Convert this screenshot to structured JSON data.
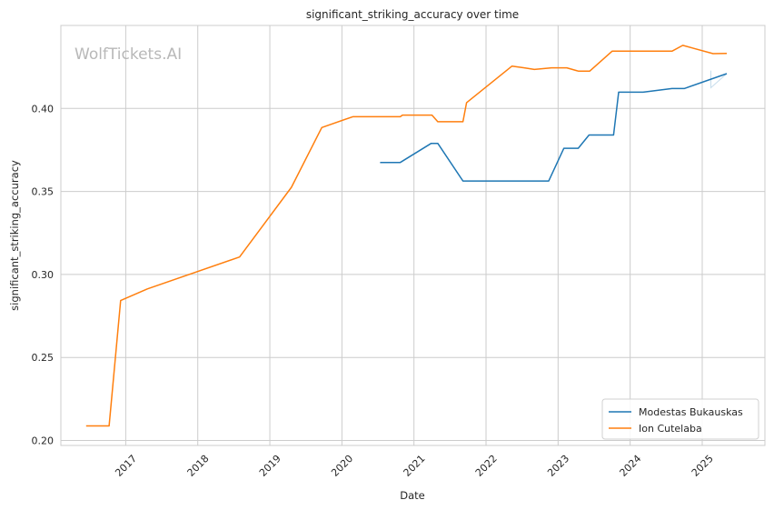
{
  "chart_data": {
    "type": "line",
    "title": "significant_striking_accuracy over time",
    "xlabel": "Date",
    "ylabel": "significant_striking_accuracy",
    "watermark": "WolfTickets.AI",
    "xlim": [
      2016.1,
      2025.87
    ],
    "ylim": [
      0.197,
      0.45
    ],
    "x_ticks": [
      2017,
      2018,
      2019,
      2020,
      2021,
      2022,
      2023,
      2024,
      2025
    ],
    "x_tick_labels": [
      "2017",
      "2018",
      "2019",
      "2020",
      "2021",
      "2022",
      "2023",
      "2024",
      "2025"
    ],
    "y_ticks": [
      0.2,
      0.25,
      0.3,
      0.35,
      0.4
    ],
    "y_tick_labels": [
      "0.20",
      "0.25",
      "0.30",
      "0.35",
      "0.40"
    ],
    "grid": true,
    "legend_position": "lower-right",
    "series": [
      {
        "name": "Modestas Bukauskas",
        "color": "#1f77b4",
        "points": [
          [
            2020.53,
            0.3675
          ],
          [
            2020.81,
            0.3675
          ],
          [
            2021.24,
            0.379
          ],
          [
            2021.33,
            0.379
          ],
          [
            2021.68,
            0.3563
          ],
          [
            2022.87,
            0.3563
          ],
          [
            2023.08,
            0.376
          ],
          [
            2023.28,
            0.376
          ],
          [
            2023.43,
            0.384
          ],
          [
            2023.77,
            0.384
          ],
          [
            2023.84,
            0.4098
          ],
          [
            2024.18,
            0.4098
          ],
          [
            2024.58,
            0.412
          ],
          [
            2024.75,
            0.412
          ],
          [
            2025.34,
            0.421
          ]
        ],
        "band": [
          [
            2025.12,
            0.4228,
            0.4228
          ],
          [
            2025.12,
            0.4125,
            0.4125
          ],
          [
            2025.34,
            0.421,
            0.421
          ]
        ]
      },
      {
        "name": "Ion Cutelaba",
        "color": "#ff7f0e",
        "points": [
          [
            2016.45,
            0.2088
          ],
          [
            2016.77,
            0.2088
          ],
          [
            2016.93,
            0.2843
          ],
          [
            2017.3,
            0.2913
          ],
          [
            2018.58,
            0.3105
          ],
          [
            2019.3,
            0.3525
          ],
          [
            2019.72,
            0.3885
          ],
          [
            2020.15,
            0.395
          ],
          [
            2020.81,
            0.395
          ],
          [
            2020.84,
            0.396
          ],
          [
            2021.25,
            0.396
          ],
          [
            2021.33,
            0.392
          ],
          [
            2021.68,
            0.392
          ],
          [
            2021.73,
            0.4035
          ],
          [
            2022.36,
            0.4255
          ],
          [
            2022.53,
            0.4245
          ],
          [
            2022.67,
            0.4235
          ],
          [
            2022.91,
            0.4245
          ],
          [
            2023.12,
            0.4245
          ],
          [
            2023.28,
            0.4225
          ],
          [
            2023.44,
            0.4225
          ],
          [
            2023.75,
            0.4345
          ],
          [
            2024.58,
            0.4345
          ],
          [
            2024.73,
            0.438
          ],
          [
            2025.15,
            0.433
          ],
          [
            2025.34,
            0.4332
          ]
        ]
      }
    ]
  }
}
